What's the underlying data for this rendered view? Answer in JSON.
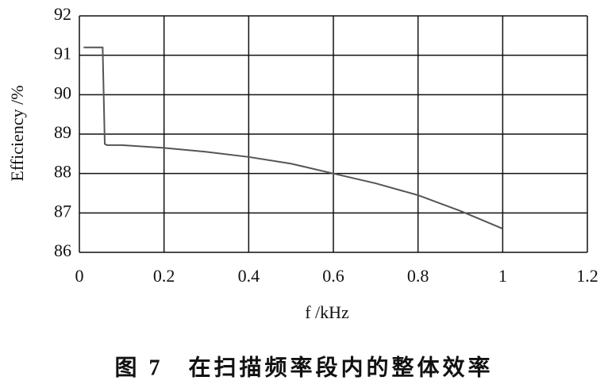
{
  "chart_data": {
    "type": "line",
    "x_label": "f /kHz",
    "y_label": "Efficiency /%",
    "caption": "图 7　在扫描频率段内的整体效率",
    "x": [
      0.01,
      0.055,
      0.06,
      0.065,
      0.1,
      0.2,
      0.3,
      0.4,
      0.5,
      0.6,
      0.7,
      0.8,
      0.9,
      1.0
    ],
    "series": [
      {
        "color": "#555555",
        "values": [
          91.2,
          91.2,
          88.75,
          88.72,
          88.72,
          88.65,
          88.55,
          88.42,
          88.25,
          88.0,
          87.75,
          87.45,
          87.05,
          86.6
        ]
      }
    ],
    "xlim": [
      0,
      1.2
    ],
    "xticks": [
      0,
      0.2,
      0.4,
      0.6,
      0.8,
      1,
      1.2
    ],
    "ylim": [
      86,
      92
    ],
    "yticks": [
      86,
      87,
      88,
      89,
      90,
      91,
      92
    ],
    "grid": true
  }
}
